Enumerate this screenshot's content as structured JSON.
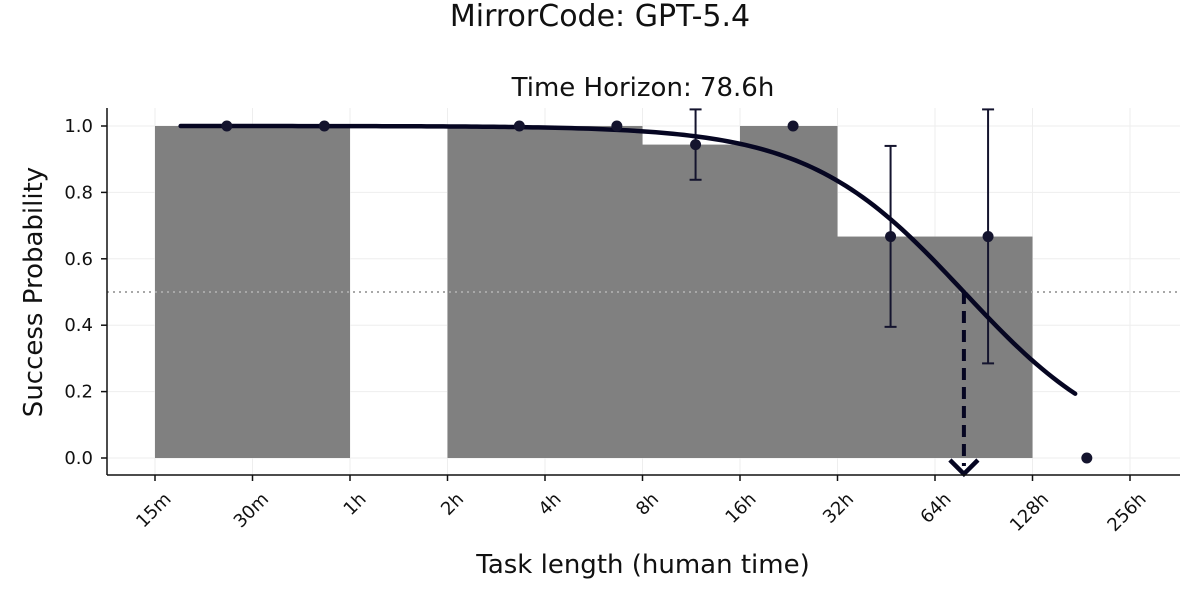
{
  "chart_data": {
    "type": "bar",
    "suptitle": "MirrorCode: GPT-5.4",
    "title": "Time Horizon: 78.6h",
    "xlabel": "Task length (human time)",
    "ylabel": "Success Probability",
    "x_scale": "log2",
    "x_unit": "minutes",
    "xlim_minutes": [
      12,
      480
    ],
    "ylim": [
      -0.05,
      1.05
    ],
    "grid": true,
    "x_ticks": [
      {
        "minutes": 15,
        "label": "15m"
      },
      {
        "minutes": 30,
        "label": "30m"
      },
      {
        "minutes": 60,
        "label": "1h"
      },
      {
        "minutes": 120,
        "label": "2h"
      },
      {
        "minutes": 240,
        "label": "4h"
      },
      {
        "minutes": 480,
        "label": "8h"
      },
      {
        "minutes": 960,
        "label": "16h"
      },
      {
        "minutes": 1920,
        "label": "32h"
      },
      {
        "minutes": 3840,
        "label": "64h"
      },
      {
        "minutes": 7680,
        "label": "128h"
      },
      {
        "minutes": 15360,
        "label": "256h"
      }
    ],
    "y_ticks": [
      "0.0",
      "0.2",
      "0.4",
      "0.6",
      "0.8",
      "1.0"
    ],
    "bins": [
      {
        "from_minutes": 15,
        "to_minutes": 60,
        "success_rate": 1.0
      },
      {
        "from_minutes": 120,
        "to_minutes": 480,
        "success_rate": 1.0
      },
      {
        "from_minutes": 480,
        "to_minutes": 960,
        "success_rate": 0.944
      },
      {
        "from_minutes": 960,
        "to_minutes": 1920,
        "success_rate": 1.0
      },
      {
        "from_minutes": 1920,
        "to_minutes": 7680,
        "success_rate": 0.667
      }
    ],
    "points": [
      {
        "minutes": 25,
        "y": 1.0
      },
      {
        "minutes": 50,
        "y": 1.0
      },
      {
        "minutes": 200,
        "y": 1.0
      },
      {
        "minutes": 400,
        "y": 1.0
      },
      {
        "minutes": 700,
        "y": 0.944,
        "err_low": 0.838,
        "err_high": 1.05
      },
      {
        "minutes": 1400,
        "y": 1.0
      },
      {
        "minutes": 2800,
        "y": 0.667,
        "err_low": 0.395,
        "err_high": 0.94
      },
      {
        "minutes": 5600,
        "y": 0.667,
        "err_low": 0.285,
        "err_high": 1.05
      },
      {
        "minutes": 11300,
        "y": 0.0
      }
    ],
    "fit_curve": {
      "midpoint_hours": 78.6,
      "slope_log2": 1.25,
      "from_minutes": 18,
      "to_minutes": 10400
    },
    "reference_line_y": 0.5,
    "time_horizon_hours": 78.6,
    "colors": {
      "bar": "#808080",
      "curve": "#060622",
      "points": "#14142e",
      "ref_line": "#a8a8a8",
      "grid": "#eeeeee"
    }
  }
}
